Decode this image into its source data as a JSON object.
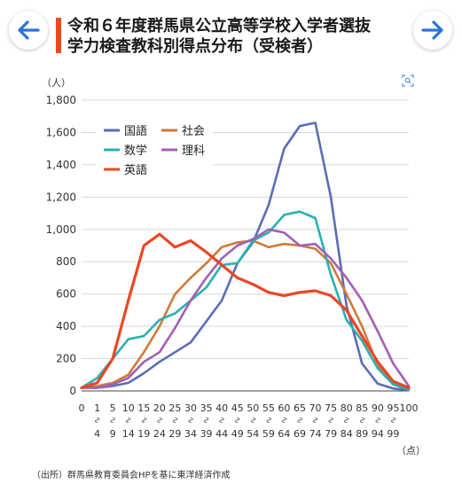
{
  "header": {
    "title_line1": "令和６年度群馬県公立高等学校入学者選抜",
    "title_line2": "学力検査教科別得点分布（受検者）"
  },
  "source": "（出所）群馬県教育委員会HPを基に東洋経済作成",
  "chart_data": {
    "type": "line",
    "title": "令和６年度群馬県公立高等学校入学者選抜 学力検査教科別得点分布（受検者）",
    "y_unit": "（人）",
    "x_unit": "（点）",
    "ylim": [
      0,
      1800
    ],
    "yticks": [
      "0",
      "200",
      "400",
      "600",
      "800",
      "1,000",
      "1,200",
      "1,400",
      "1,600",
      "1,800"
    ],
    "grid": true,
    "legend_position": "top-left",
    "categories": [
      {
        "top": "0",
        "bottom": ""
      },
      {
        "top": "1",
        "bottom": "4"
      },
      {
        "top": "5",
        "bottom": "9"
      },
      {
        "top": "10",
        "bottom": "14"
      },
      {
        "top": "15",
        "bottom": "19"
      },
      {
        "top": "20",
        "bottom": "24"
      },
      {
        "top": "25",
        "bottom": "29"
      },
      {
        "top": "30",
        "bottom": "34"
      },
      {
        "top": "35",
        "bottom": "39"
      },
      {
        "top": "40",
        "bottom": "44"
      },
      {
        "top": "45",
        "bottom": "49"
      },
      {
        "top": "50",
        "bottom": "54"
      },
      {
        "top": "55",
        "bottom": "59"
      },
      {
        "top": "60",
        "bottom": "64"
      },
      {
        "top": "65",
        "bottom": "69"
      },
      {
        "top": "70",
        "bottom": "74"
      },
      {
        "top": "75",
        "bottom": "79"
      },
      {
        "top": "80",
        "bottom": "84"
      },
      {
        "top": "85",
        "bottom": "89"
      },
      {
        "top": "90",
        "bottom": "94"
      },
      {
        "top": "95",
        "bottom": "99"
      },
      {
        "top": "100",
        "bottom": ""
      }
    ],
    "series": [
      {
        "name": "国語",
        "color": "#5b6db5",
        "values": [
          20,
          20,
          30,
          50,
          110,
          180,
          240,
          300,
          430,
          560,
          790,
          920,
          1150,
          1500,
          1640,
          1660,
          1200,
          530,
          170,
          45,
          15,
          5
        ]
      },
      {
        "name": "社会",
        "color": "#cf7a3a",
        "values": [
          20,
          30,
          50,
          100,
          240,
          400,
          600,
          700,
          790,
          890,
          920,
          930,
          890,
          910,
          900,
          880,
          790,
          600,
          400,
          160,
          50,
          10
        ]
      },
      {
        "name": "数学",
        "color": "#29b0b2",
        "values": [
          20,
          80,
          200,
          320,
          340,
          440,
          480,
          560,
          640,
          780,
          790,
          930,
          980,
          1090,
          1110,
          1070,
          720,
          440,
          310,
          140,
          40,
          10
        ]
      },
      {
        "name": "理科",
        "color": "#a45fb3",
        "values": [
          20,
          20,
          40,
          80,
          180,
          240,
          390,
          560,
          700,
          820,
          900,
          940,
          1000,
          980,
          900,
          910,
          820,
          700,
          560,
          370,
          170,
          30
        ]
      },
      {
        "name": "英語",
        "color": "#ee4523",
        "values": [
          20,
          50,
          200,
          560,
          900,
          970,
          890,
          930,
          860,
          780,
          700,
          660,
          610,
          590,
          610,
          620,
          590,
          500,
          340,
          180,
          60,
          20
        ]
      }
    ]
  }
}
